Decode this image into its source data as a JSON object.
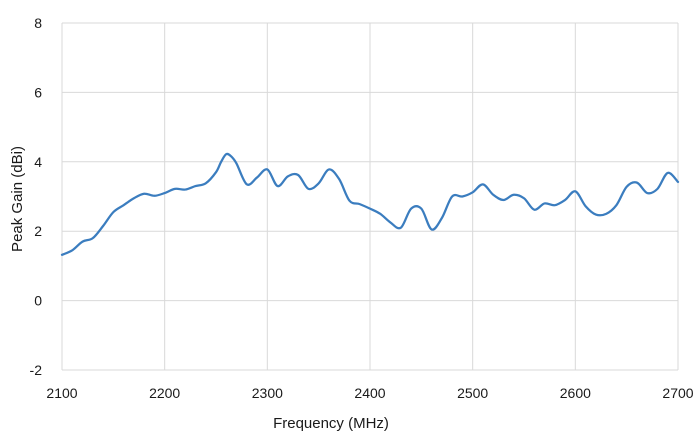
{
  "chart_data": {
    "type": "line",
    "title": "",
    "xlabel": "Frequency (MHz)",
    "ylabel": "Peak Gain (dBi)",
    "xlim": [
      2100,
      2700
    ],
    "ylim": [
      -2,
      8
    ],
    "x_ticks": [
      2100,
      2200,
      2300,
      2400,
      2500,
      2600,
      2700
    ],
    "y_ticks": [
      -2,
      0,
      2,
      4,
      6,
      8
    ],
    "grid": true,
    "legend": "none",
    "series": [
      {
        "color": "#3b7dbf",
        "x": [
          2100,
          2110,
          2120,
          2130,
          2140,
          2150,
          2160,
          2170,
          2180,
          2190,
          2200,
          2210,
          2220,
          2230,
          2240,
          2250,
          2255,
          2260,
          2265,
          2270,
          2280,
          2290,
          2300,
          2310,
          2320,
          2330,
          2340,
          2350,
          2360,
          2370,
          2380,
          2390,
          2400,
          2410,
          2420,
          2430,
          2440,
          2450,
          2460,
          2470,
          2480,
          2490,
          2500,
          2510,
          2520,
          2530,
          2540,
          2550,
          2560,
          2570,
          2580,
          2590,
          2600,
          2610,
          2620,
          2630,
          2640,
          2650,
          2660,
          2670,
          2680,
          2690,
          2700
        ],
        "y": [
          1.32,
          1.45,
          1.7,
          1.8,
          2.15,
          2.55,
          2.75,
          2.95,
          3.08,
          3.02,
          3.1,
          3.22,
          3.2,
          3.3,
          3.38,
          3.7,
          4.0,
          4.22,
          4.15,
          3.95,
          3.35,
          3.55,
          3.78,
          3.3,
          3.58,
          3.62,
          3.22,
          3.38,
          3.78,
          3.5,
          2.88,
          2.78,
          2.65,
          2.5,
          2.25,
          2.1,
          2.65,
          2.65,
          2.05,
          2.38,
          3.0,
          3.0,
          3.12,
          3.35,
          3.05,
          2.9,
          3.05,
          2.95,
          2.62,
          2.8,
          2.75,
          2.9,
          3.15,
          2.72,
          2.48,
          2.5,
          2.75,
          3.28,
          3.4,
          3.1,
          3.22,
          3.68,
          3.42
        ]
      }
    ]
  }
}
